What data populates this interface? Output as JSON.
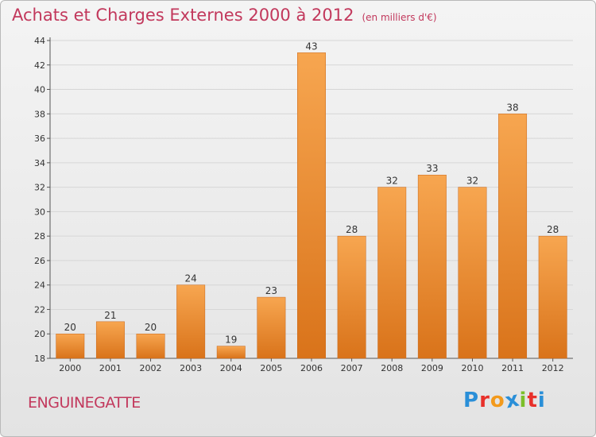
{
  "title": "Achats et Charges Externes 2000 à 2012",
  "unit": "(en milliers d'€)",
  "commune": "ENGUINEGATTE",
  "logo": {
    "letters": [
      "P",
      "r",
      "o",
      "x",
      "i",
      "t",
      "i"
    ],
    "colors": [
      "#2a8fd8",
      "#e8302a",
      "#f39a1c",
      "#2a8fd8",
      "#7cbf2a",
      "#e8302a",
      "#2a8fd8"
    ]
  },
  "colors": {
    "title": "#c2385c",
    "bar_top": "#f7a650",
    "bar_bottom": "#d9731a"
  },
  "chart_data": {
    "type": "bar",
    "categories": [
      "2000",
      "2001",
      "2002",
      "2003",
      "2004",
      "2005",
      "2006",
      "2007",
      "2008",
      "2009",
      "2010",
      "2011",
      "2012"
    ],
    "values": [
      20,
      21,
      20,
      24,
      19,
      23,
      43,
      28,
      32,
      33,
      32,
      38,
      28
    ],
    "ylim": [
      18,
      44
    ],
    "yticks": [
      18,
      20,
      22,
      24,
      26,
      28,
      30,
      32,
      34,
      36,
      38,
      40,
      42,
      44
    ],
    "grid": true,
    "xlabel": "",
    "ylabel": ""
  }
}
